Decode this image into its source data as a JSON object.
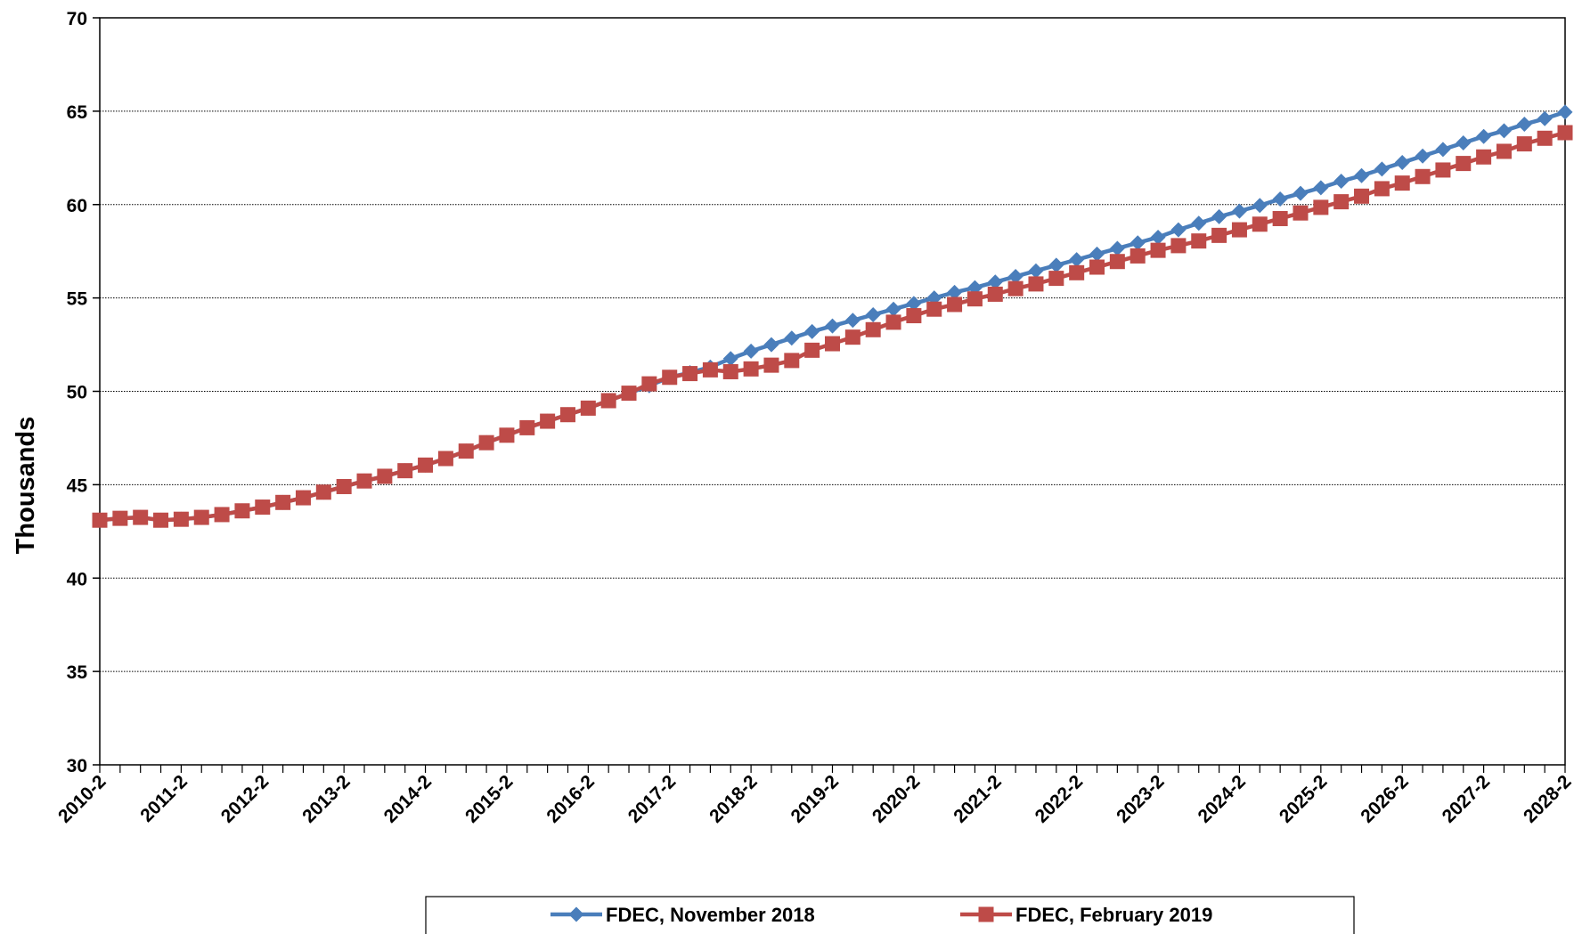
{
  "chart_data": {
    "type": "line",
    "title": "",
    "xlabel": "",
    "ylabel": "Thousands",
    "ylim": [
      30,
      70
    ],
    "yticks": [
      30,
      35,
      40,
      45,
      50,
      55,
      60,
      65,
      70
    ],
    "grid": "horizontal",
    "legend_position": "bottom",
    "x": [
      "2010-2",
      "2010-3",
      "2010-4",
      "2011-1",
      "2011-2",
      "2011-3",
      "2011-4",
      "2012-1",
      "2012-2",
      "2012-3",
      "2012-4",
      "2013-1",
      "2013-2",
      "2013-3",
      "2013-4",
      "2014-1",
      "2014-2",
      "2014-3",
      "2014-4",
      "2015-1",
      "2015-2",
      "2015-3",
      "2015-4",
      "2016-1",
      "2016-2",
      "2016-3",
      "2016-4",
      "2017-1",
      "2017-2",
      "2017-3",
      "2017-4",
      "2018-1",
      "2018-2",
      "2018-3",
      "2018-4",
      "2019-1",
      "2019-2",
      "2019-3",
      "2019-4",
      "2020-1",
      "2020-2",
      "2020-3",
      "2020-4",
      "2021-1",
      "2021-2",
      "2021-3",
      "2021-4",
      "2022-1",
      "2022-2",
      "2022-3",
      "2022-4",
      "2023-1",
      "2023-2",
      "2023-3",
      "2023-4",
      "2024-1",
      "2024-2",
      "2024-3",
      "2024-4",
      "2025-1",
      "2025-2",
      "2025-3",
      "2025-4",
      "2026-1",
      "2026-2",
      "2026-3",
      "2026-4",
      "2027-1",
      "2027-2",
      "2027-3",
      "2027-4",
      "2028-1",
      "2028-2"
    ],
    "xtick_labels": [
      "2010-2",
      "2011-2",
      "2012-2",
      "2013-2",
      "2014-2",
      "2015-2",
      "2016-2",
      "2017-2",
      "2018-2",
      "2019-2",
      "2020-2",
      "2021-2",
      "2022-2",
      "2023-2",
      "2024-2",
      "2025-2",
      "2026-2",
      "2027-2",
      "2028-2"
    ],
    "series": [
      {
        "name": "FDEC, November 2018",
        "color": "#4a7ebb",
        "marker": "diamond",
        "values": [
          43.1,
          43.2,
          43.25,
          43.1,
          43.15,
          43.25,
          43.4,
          43.6,
          43.8,
          44.05,
          44.3,
          44.6,
          44.9,
          45.2,
          45.45,
          45.75,
          46.05,
          46.4,
          46.8,
          47.25,
          47.65,
          48.05,
          48.4,
          48.75,
          49.1,
          49.5,
          49.9,
          50.3,
          50.75,
          51.0,
          51.3,
          51.75,
          52.15,
          52.5,
          52.85,
          53.2,
          53.5,
          53.8,
          54.1,
          54.4,
          54.7,
          55.0,
          55.3,
          55.55,
          55.85,
          56.15,
          56.45,
          56.75,
          57.05,
          57.35,
          57.65,
          57.95,
          58.25,
          58.65,
          59.0,
          59.35,
          59.65,
          59.95,
          60.3,
          60.6,
          60.9,
          61.25,
          61.55,
          61.9,
          62.25,
          62.6,
          62.95,
          63.3,
          63.65,
          63.95,
          64.3,
          64.6,
          64.95
        ]
      },
      {
        "name": "FDEC, February 2019",
        "color": "#be4b48",
        "marker": "square",
        "values": [
          43.1,
          43.2,
          43.25,
          43.1,
          43.15,
          43.25,
          43.4,
          43.6,
          43.8,
          44.05,
          44.3,
          44.6,
          44.9,
          45.2,
          45.45,
          45.75,
          46.05,
          46.4,
          46.8,
          47.25,
          47.65,
          48.05,
          48.4,
          48.75,
          49.1,
          49.5,
          49.9,
          50.4,
          50.75,
          50.95,
          51.15,
          51.05,
          51.2,
          51.4,
          51.65,
          52.2,
          52.55,
          52.9,
          53.3,
          53.7,
          54.05,
          54.4,
          54.65,
          54.95,
          55.2,
          55.5,
          55.75,
          56.05,
          56.35,
          56.65,
          56.95,
          57.25,
          57.55,
          57.8,
          58.05,
          58.35,
          58.65,
          58.95,
          59.25,
          59.55,
          59.85,
          60.15,
          60.45,
          60.85,
          61.15,
          61.5,
          61.85,
          62.2,
          62.55,
          62.85,
          63.25,
          63.55,
          63.85
        ]
      }
    ]
  }
}
